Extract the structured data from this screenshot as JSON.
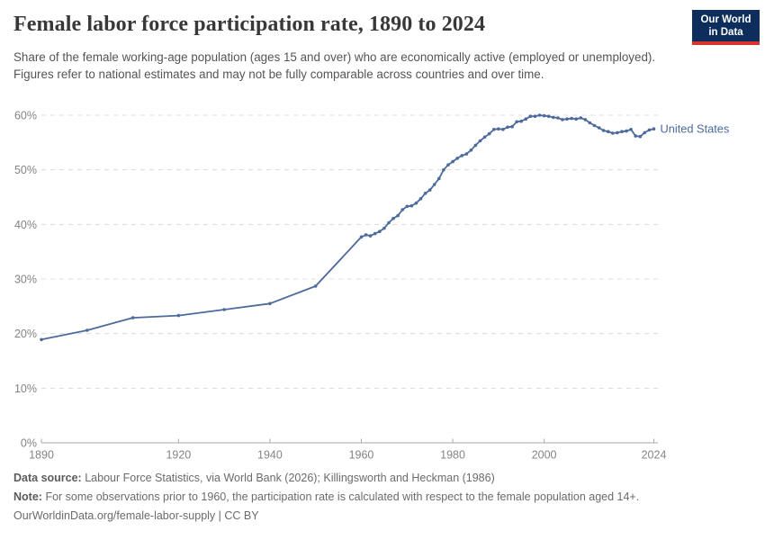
{
  "colors": {
    "accent": "#4c6a9c",
    "grid": "#dcdcdc",
    "axis": "#a8a8a8",
    "tick_label": "#848484",
    "logo_bg": "#0d2e5c",
    "logo_red": "#d6342c"
  },
  "header": {
    "title": "Female labor force participation rate, 1890 to 2024",
    "subtitle": "Share of the female working-age population (ages 15 and over) who are economically active (employed or unemployed). Figures refer to national estimates and may not be fully comparable across countries and over time.",
    "logo": {
      "line1": "Our World",
      "line2": "in Data"
    }
  },
  "chart_data": {
    "type": "line",
    "title": "Female labor force participation rate, 1890 to 2024",
    "xlabel": "",
    "ylabel": "",
    "xlim": [
      1890,
      2024
    ],
    "ylim": [
      0,
      60
    ],
    "y_suffix": "%",
    "grid": "dashed horizontal",
    "legend_position": "end-of-line label",
    "x_ticks": [
      1890,
      1920,
      1940,
      1960,
      1980,
      2000,
      2024
    ],
    "y_ticks": [
      0,
      10,
      20,
      30,
      40,
      50,
      60
    ],
    "series": [
      {
        "name": "United States",
        "color": "#4c6a9c",
        "points": [
          [
            1890,
            18.9
          ],
          [
            1900,
            20.6
          ],
          [
            1910,
            22.9
          ],
          [
            1920,
            23.3
          ],
          [
            1930,
            24.4
          ],
          [
            1940,
            25.5
          ],
          [
            1950,
            28.7
          ],
          [
            1960,
            37.7
          ],
          [
            1961,
            38.1
          ],
          [
            1962,
            37.9
          ],
          [
            1963,
            38.3
          ],
          [
            1964,
            38.7
          ],
          [
            1965,
            39.3
          ],
          [
            1966,
            40.3
          ],
          [
            1967,
            41.1
          ],
          [
            1968,
            41.6
          ],
          [
            1969,
            42.7
          ],
          [
            1970,
            43.3
          ],
          [
            1971,
            43.4
          ],
          [
            1972,
            43.9
          ],
          [
            1973,
            44.7
          ],
          [
            1974,
            45.7
          ],
          [
            1975,
            46.3
          ],
          [
            1976,
            47.3
          ],
          [
            1977,
            48.4
          ],
          [
            1978,
            50.0
          ],
          [
            1979,
            50.9
          ],
          [
            1980,
            51.5
          ],
          [
            1981,
            52.1
          ],
          [
            1982,
            52.6
          ],
          [
            1983,
            52.9
          ],
          [
            1984,
            53.6
          ],
          [
            1985,
            54.5
          ],
          [
            1986,
            55.3
          ],
          [
            1987,
            56.0
          ],
          [
            1988,
            56.6
          ],
          [
            1989,
            57.4
          ],
          [
            1990,
            57.5
          ],
          [
            1991,
            57.4
          ],
          [
            1992,
            57.8
          ],
          [
            1993,
            57.9
          ],
          [
            1994,
            58.8
          ],
          [
            1995,
            58.9
          ],
          [
            1996,
            59.3
          ],
          [
            1997,
            59.8
          ],
          [
            1998,
            59.8
          ],
          [
            1999,
            60.0
          ],
          [
            2000,
            59.9
          ],
          [
            2001,
            59.8
          ],
          [
            2002,
            59.6
          ],
          [
            2003,
            59.5
          ],
          [
            2004,
            59.2
          ],
          [
            2005,
            59.3
          ],
          [
            2006,
            59.4
          ],
          [
            2007,
            59.3
          ],
          [
            2008,
            59.5
          ],
          [
            2009,
            59.2
          ],
          [
            2010,
            58.6
          ],
          [
            2011,
            58.1
          ],
          [
            2012,
            57.7
          ],
          [
            2013,
            57.2
          ],
          [
            2014,
            57.0
          ],
          [
            2015,
            56.7
          ],
          [
            2016,
            56.8
          ],
          [
            2017,
            57.0
          ],
          [
            2018,
            57.1
          ],
          [
            2019,
            57.4
          ],
          [
            2020,
            56.2
          ],
          [
            2021,
            56.1
          ],
          [
            2022,
            56.8
          ],
          [
            2023,
            57.3
          ],
          [
            2024,
            57.5
          ]
        ]
      }
    ]
  },
  "footer": {
    "source_label": "Data source:",
    "source_text": "Labour Force Statistics, via World Bank (2026); Killingsworth and Heckman (1986)",
    "note_label": "Note:",
    "note_text": "For some observations prior to 1960, the participation rate is calculated with respect to the female population aged 14+.",
    "url_text": "OurWorldinData.org/female-labor-supply",
    "separator": " | ",
    "license_text": "CC BY"
  }
}
